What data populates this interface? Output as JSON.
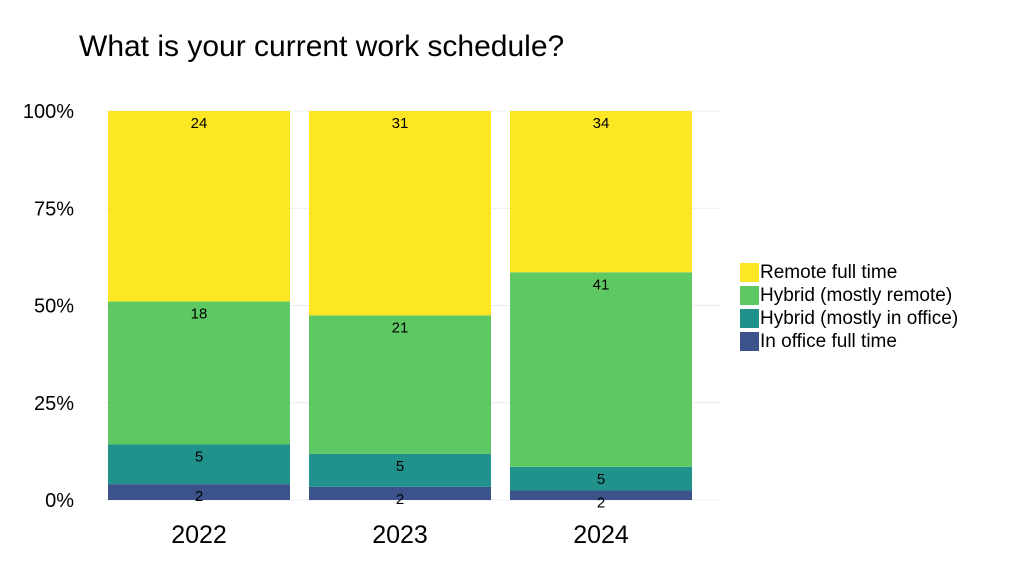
{
  "chart_data": {
    "type": "bar",
    "stacked": true,
    "percent_stacked": true,
    "title": "What is your current work schedule?",
    "xlabel": "",
    "ylabel": "",
    "categories": [
      "2022",
      "2023",
      "2024"
    ],
    "ylim": [
      0,
      100
    ],
    "yticks": [
      "0%",
      "25%",
      "50%",
      "75%",
      "100%"
    ],
    "grid": true,
    "legend_position": "right",
    "series": [
      {
        "name": "In office full time",
        "color": "#3b528b",
        "values": [
          2,
          2,
          2
        ]
      },
      {
        "name": "Hybrid (mostly in office)",
        "color": "#21918c",
        "values": [
          5,
          5,
          5
        ]
      },
      {
        "name": "Hybrid (mostly remote)",
        "color": "#5ec962",
        "values": [
          18,
          21,
          41
        ]
      },
      {
        "name": "Remote full time",
        "color": "#fde725",
        "values": [
          24,
          31,
          34
        ]
      }
    ]
  },
  "legend": {
    "items": [
      {
        "label": "Remote full time",
        "color": "#fde725"
      },
      {
        "label": "Hybrid (mostly remote)",
        "color": "#5ec962"
      },
      {
        "label": "Hybrid (mostly in office)",
        "color": "#21918c"
      },
      {
        "label": "In office full time",
        "color": "#3b528b"
      }
    ]
  }
}
